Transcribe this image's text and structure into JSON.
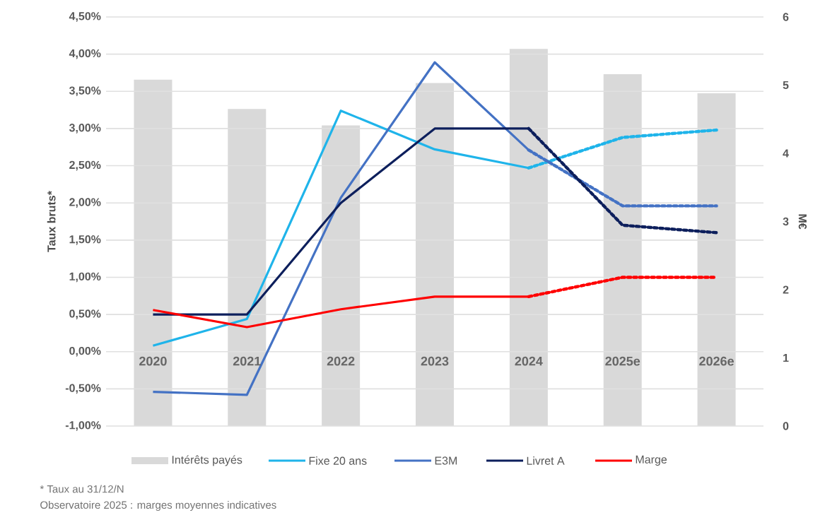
{
  "chart_data": {
    "type": "line",
    "ylabel": "Taux bruts*",
    "y2label": "M€",
    "categories": [
      "2020",
      "2021",
      "2022",
      "2023",
      "2024",
      "2025e",
      "2026e"
    ],
    "series": [
      {
        "name": "Intérêts payés",
        "type": "bar",
        "axis": "y2",
        "color": "#d9d9d9",
        "values": [
          5.08,
          4.65,
          4.41,
          5.03,
          5.53,
          5.16,
          4.88
        ]
      },
      {
        "name": "Fixe 20 ans",
        "color": "#1fb4ea",
        "values": [
          0.08,
          0.44,
          3.24,
          2.72,
          2.47,
          null,
          null
        ]
      },
      {
        "name": "E3M",
        "color": "#4472c4",
        "values": [
          -0.54,
          -0.58,
          2.07,
          3.89,
          2.71,
          null,
          null
        ]
      },
      {
        "name": "Livret A",
        "color": "#0d1f5c",
        "values": [
          0.5,
          0.5,
          2.0,
          3.0,
          3.0,
          null,
          null
        ]
      },
      {
        "name": "Marge",
        "color": "#ff0000",
        "values": [
          0.56,
          0.33,
          0.57,
          0.74,
          0.74,
          null,
          null
        ]
      },
      {
        "color": "#1fb4ea",
        "line_style": "dotted",
        "values": [
          null,
          null,
          null,
          null,
          2.47,
          2.88,
          2.98
        ]
      },
      {
        "color": "#4472c4",
        "line_style": "dotted",
        "values": [
          null,
          null,
          null,
          null,
          2.71,
          1.96,
          1.96
        ]
      },
      {
        "color": "#0d1f5c",
        "line_style": "dotted",
        "values": [
          null,
          null,
          null,
          null,
          3.0,
          1.7,
          1.6
        ]
      },
      {
        "color": "#ff0000",
        "line_style": "dotted",
        "values": [
          null,
          null,
          null,
          null,
          0.74,
          1.0,
          1.0
        ]
      }
    ],
    "ylim": [
      -1.0,
      4.5
    ],
    "yticks": [
      {
        "value": -1.0,
        "label": "-1,00%"
      },
      {
        "value": -0.5,
        "label": "-0,50%"
      },
      {
        "value": 0.0,
        "label": "0,00%"
      },
      {
        "value": 0.5,
        "label": "0,50%"
      },
      {
        "value": 1.0,
        "label": "1,00%"
      },
      {
        "value": 1.5,
        "label": "1,50%"
      },
      {
        "value": 2.0,
        "label": "2,00%"
      },
      {
        "value": 2.5,
        "label": "2,50%"
      },
      {
        "value": 3.0,
        "label": "3,00%"
      },
      {
        "value": 3.5,
        "label": "3,50%"
      },
      {
        "value": 4.0,
        "label": "4,00%"
      },
      {
        "value": 4.5,
        "label": "4,50%"
      }
    ],
    "y2lim": [
      0,
      6
    ],
    "y2ticks": [
      0,
      1,
      2,
      3,
      4,
      5,
      6
    ],
    "grid": "y",
    "legend": "bottom",
    "marker": "none",
    "line_style": "solid",
    "annotations": [
      "* Taux au 31/12/N",
      "Observatoire 2025 : marges moyennes indicatives"
    ]
  }
}
